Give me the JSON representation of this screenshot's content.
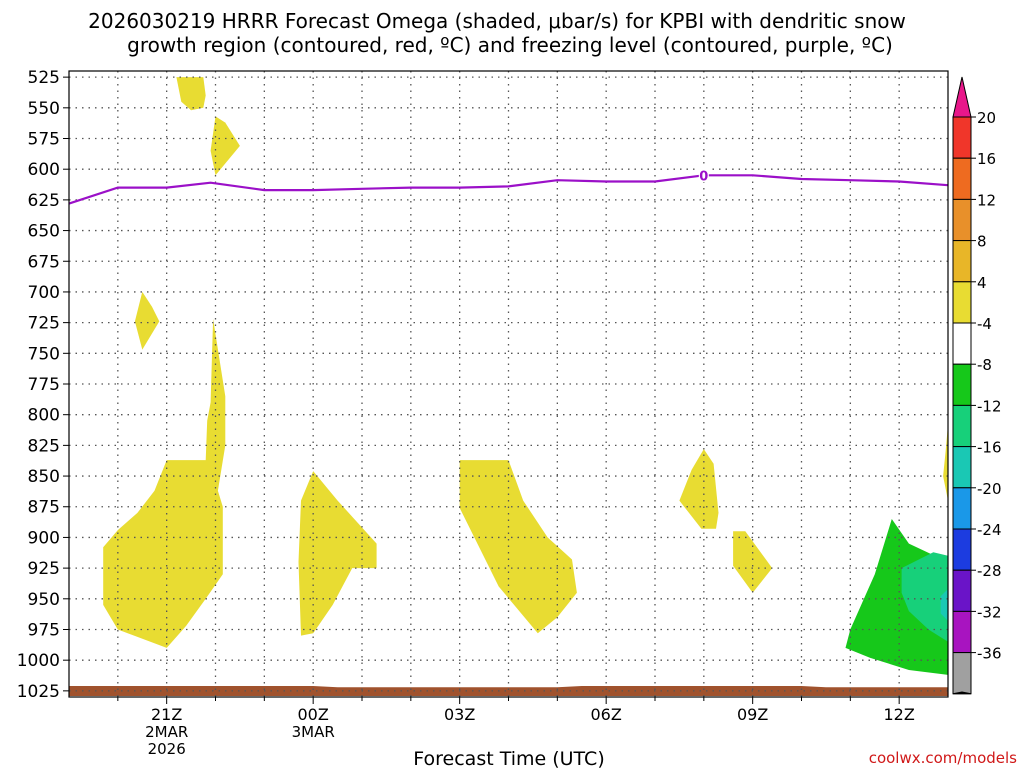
{
  "chart_data": {
    "type": "heatmap",
    "title_line1": "2026030219 HRRR Forecast Omega (shaded, μbar/s) for KPBI with dendritic snow",
    "title_line2": "growth region (contoured, red, ºC) and freezing level (contoured, purple, ºC)",
    "xlabel": "Forecast Time (UTC)",
    "credit": "coolwx.com/models",
    "x_range_hours": [
      -2,
      16
    ],
    "x_ticks": [
      {
        "h": 0,
        "label": "21Z",
        "sub1": "2MAR",
        "sub2": "2026"
      },
      {
        "h": 3,
        "label": "00Z",
        "sub1": "3MAR",
        "sub2": ""
      },
      {
        "h": 6,
        "label": "03Z",
        "sub1": "",
        "sub2": ""
      },
      {
        "h": 9,
        "label": "06Z",
        "sub1": "",
        "sub2": ""
      },
      {
        "h": 12,
        "label": "09Z",
        "sub1": "",
        "sub2": ""
      },
      {
        "h": 15,
        "label": "12Z",
        "sub1": "",
        "sub2": ""
      }
    ],
    "y_ticks": [
      525,
      550,
      575,
      600,
      625,
      650,
      675,
      700,
      725,
      750,
      775,
      800,
      825,
      850,
      875,
      900,
      925,
      950,
      975,
      1000,
      1025
    ],
    "y_range_hpa": [
      520,
      1030
    ],
    "colorbar": {
      "labels": [
        "20",
        "16",
        "12",
        "8",
        "4",
        "-4",
        "-8",
        "-12",
        "-16",
        "-20",
        "-24",
        "-28",
        "-32",
        "-36"
      ],
      "bins": [
        {
          "color": "#e8178a",
          "kind": "arrow-up"
        },
        {
          "color": "#f0362a",
          "kind": "box"
        },
        {
          "color": "#ee6b20",
          "kind": "box"
        },
        {
          "color": "#e8902a",
          "kind": "box"
        },
        {
          "color": "#e8b628",
          "kind": "box"
        },
        {
          "color": "#e8dc32",
          "kind": "box"
        },
        {
          "color": "#ffffff",
          "kind": "box"
        },
        {
          "color": "#16c81a",
          "kind": "box"
        },
        {
          "color": "#17d07a",
          "kind": "box"
        },
        {
          "color": "#1ac8b4",
          "kind": "box"
        },
        {
          "color": "#1a98e8",
          "kind": "box"
        },
        {
          "color": "#1c3ce0",
          "kind": "box"
        },
        {
          "color": "#6a14c8",
          "kind": "box"
        },
        {
          "color": "#a814c0",
          "kind": "box"
        },
        {
          "color": "#a0a0a0",
          "kind": "box"
        },
        {
          "color": "#000000",
          "kind": "arrow-down"
        }
      ]
    },
    "omega_regions": [
      {
        "band": "4 to 8",
        "color": "#e8dc32",
        "points": [
          [
            0.2,
            525
          ],
          [
            0.75,
            525
          ],
          [
            0.8,
            540
          ],
          [
            0.75,
            550
          ],
          [
            0.5,
            552
          ],
          [
            0.3,
            545
          ]
        ]
      },
      {
        "band": "4 to 8",
        "color": "#e8dc32",
        "points": [
          [
            1.0,
            557
          ],
          [
            1.2,
            562
          ],
          [
            1.5,
            581
          ],
          [
            1.0,
            605
          ],
          [
            0.9,
            585
          ]
        ]
      },
      {
        "band": "4 to 8",
        "color": "#e8dc32",
        "points": [
          [
            -0.5,
            700
          ],
          [
            -0.3,
            712
          ],
          [
            -0.15,
            724
          ],
          [
            -0.5,
            747
          ],
          [
            -0.65,
            724
          ]
        ]
      },
      {
        "band": "4 to 8",
        "color": "#e8dc32",
        "points": [
          [
            -1.3,
            935
          ],
          [
            -1.3,
            908
          ],
          [
            -1.0,
            894
          ],
          [
            -0.6,
            880
          ],
          [
            -0.25,
            862
          ],
          [
            0.0,
            837
          ],
          [
            0.8,
            837
          ],
          [
            0.83,
            805
          ],
          [
            0.9,
            790
          ],
          [
            0.95,
            722
          ],
          [
            1.2,
            785
          ],
          [
            1.2,
            825
          ],
          [
            1.05,
            862
          ],
          [
            1.15,
            875
          ],
          [
            1.15,
            930
          ],
          [
            0.8,
            950
          ],
          [
            0.4,
            972
          ],
          [
            0.0,
            990
          ],
          [
            -1.0,
            975
          ],
          [
            -1.3,
            955
          ]
        ]
      },
      {
        "band": "4 to 8",
        "color": "#e8dc32",
        "points": [
          [
            2.75,
            980
          ],
          [
            2.7,
            920
          ],
          [
            2.75,
            870
          ],
          [
            3.0,
            846
          ],
          [
            3.5,
            870
          ],
          [
            4.3,
            905
          ],
          [
            4.3,
            925
          ],
          [
            3.8,
            925
          ],
          [
            3.4,
            955
          ],
          [
            3.0,
            978
          ]
        ]
      },
      {
        "band": "4 to 8",
        "color": "#e8dc32",
        "points": [
          [
            6.0,
            837
          ],
          [
            7.0,
            837
          ],
          [
            7.3,
            870
          ],
          [
            7.8,
            900
          ],
          [
            8.3,
            918
          ],
          [
            8.4,
            945
          ],
          [
            8.0,
            965
          ],
          [
            7.6,
            978
          ],
          [
            6.8,
            940
          ],
          [
            6.3,
            900
          ],
          [
            6.0,
            876
          ]
        ]
      },
      {
        "band": "4 to 8",
        "color": "#e8dc32",
        "points": [
          [
            10.5,
            870
          ],
          [
            10.75,
            845
          ],
          [
            11.0,
            828
          ],
          [
            11.2,
            840
          ],
          [
            11.3,
            880
          ],
          [
            11.25,
            893
          ],
          [
            10.95,
            893
          ]
        ]
      },
      {
        "band": "4 to 8",
        "color": "#e8dc32",
        "points": [
          [
            11.6,
            895
          ],
          [
            11.85,
            895
          ],
          [
            12.4,
            925
          ],
          [
            12.0,
            945
          ],
          [
            11.6,
            923
          ]
        ]
      },
      {
        "band": "4 to 8",
        "color": "#e8dc32",
        "points": [
          [
            16.0,
            808
          ],
          [
            15.95,
            830
          ],
          [
            15.9,
            850
          ],
          [
            16.0,
            870
          ]
        ]
      },
      {
        "band": "-8 to -4",
        "color": "#16c81a",
        "points": [
          [
            14.0,
            975
          ],
          [
            14.5,
            930
          ],
          [
            14.85,
            885
          ],
          [
            15.2,
            905
          ],
          [
            16.0,
            920
          ],
          [
            16.0,
            1012
          ],
          [
            15.2,
            1008
          ],
          [
            14.4,
            998
          ],
          [
            13.9,
            990
          ]
        ]
      },
      {
        "band": "-12 to -8",
        "color": "#17d07a",
        "points": [
          [
            15.05,
            925
          ],
          [
            15.7,
            912
          ],
          [
            16.0,
            915
          ],
          [
            16.0,
            985
          ],
          [
            15.6,
            975
          ],
          [
            15.2,
            960
          ],
          [
            15.05,
            945
          ]
        ]
      },
      {
        "band": "-16 to -12",
        "color": "#1ac8b4",
        "points": [
          [
            15.85,
            948
          ],
          [
            16.0,
            942
          ],
          [
            16.0,
            968
          ],
          [
            15.85,
            962
          ]
        ]
      }
    ],
    "freezing_level": {
      "label": "0",
      "label_h": 11.0,
      "color": "#9b10c8",
      "points": [
        [
          -2.0,
          628
        ],
        [
          -1.0,
          615
        ],
        [
          0.0,
          615
        ],
        [
          0.9,
          611
        ],
        [
          2.0,
          617
        ],
        [
          3.0,
          617
        ],
        [
          4.0,
          616
        ],
        [
          5.0,
          615
        ],
        [
          6.0,
          615
        ],
        [
          7.0,
          614
        ],
        [
          8.0,
          609
        ],
        [
          9.0,
          610
        ],
        [
          10.0,
          610
        ],
        [
          11.0,
          605
        ],
        [
          12.0,
          605
        ],
        [
          13.0,
          608
        ],
        [
          14.0,
          609
        ],
        [
          15.0,
          610
        ],
        [
          16.0,
          613
        ]
      ]
    },
    "terrain": {
      "color": "#a0522d",
      "points": [
        [
          -2.0,
          1021
        ],
        [
          3.0,
          1021
        ],
        [
          3.5,
          1022
        ],
        [
          8.0,
          1022
        ],
        [
          8.5,
          1021
        ],
        [
          13.0,
          1021
        ],
        [
          13.5,
          1022
        ],
        [
          16.0,
          1022
        ]
      ]
    }
  }
}
